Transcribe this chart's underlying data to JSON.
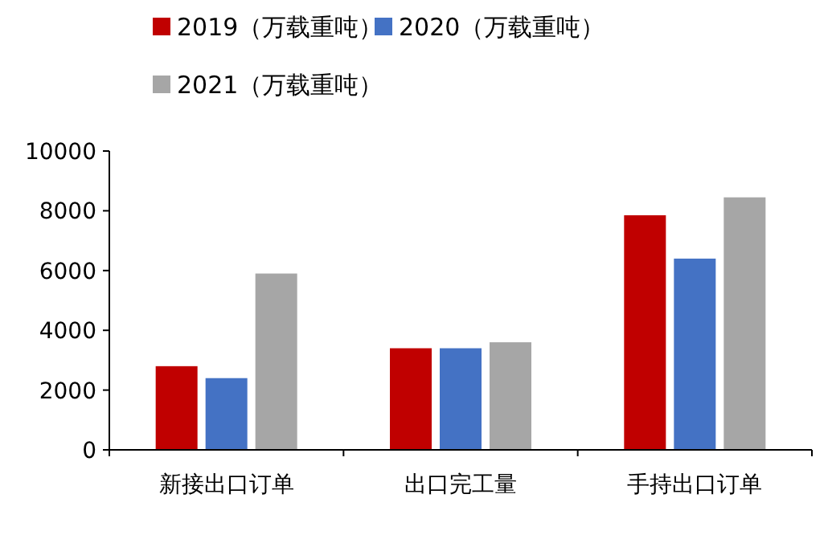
{
  "chart_data": {
    "type": "bar",
    "categories": [
      "新接出口订单",
      "出口完工量",
      "手持出口订单"
    ],
    "series": [
      {
        "name": "2019（万载重吨）",
        "color": "#c00000",
        "values": [
          2800,
          3400,
          7850
        ]
      },
      {
        "name": "2020（万载重吨）",
        "color": "#4472c4",
        "values": [
          2400,
          3400,
          6400
        ]
      },
      {
        "name": "2021（万载重吨）",
        "color": "#a6a6a6",
        "values": [
          5900,
          3600,
          8450
        ]
      }
    ],
    "ylim": [
      0,
      10000
    ],
    "yticks": [
      0,
      2000,
      4000,
      6000,
      8000,
      10000
    ],
    "grid": false,
    "legend": "top"
  }
}
